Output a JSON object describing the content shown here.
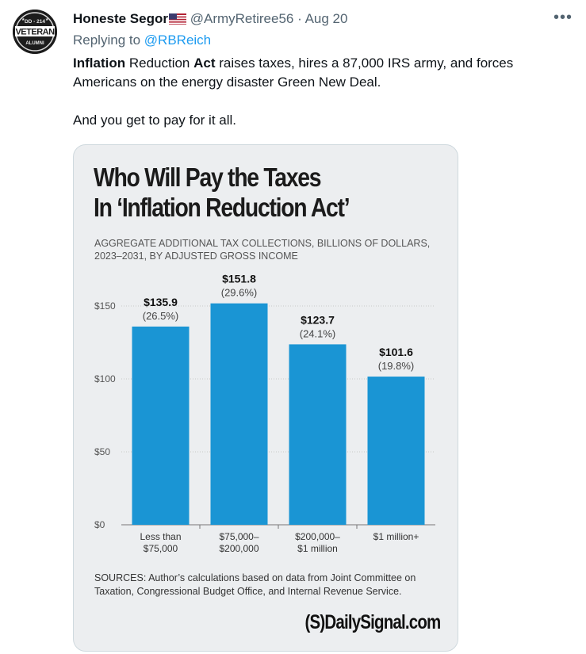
{
  "tweet": {
    "author_name": "Honeste Segor",
    "author_handle": "@ArmyRetiree56",
    "separator": "·",
    "date": "Aug 20",
    "more_label": "•••",
    "replying_prefix": "Replying to",
    "replying_handle": "@RBReich",
    "line1_bold1": "Inflation",
    "line1_mid1": " Reduction ",
    "line1_bold2": "Act",
    "line1_rest": " raises taxes, hires a 87,000 IRS army, and forces Americans on the energy disaster Green New Deal.",
    "line2": "And you get to pay for it all.",
    "avatar_top_text": "DD - 214",
    "avatar_main_text": "VETERAN",
    "avatar_bottom_text": "ALUMNI"
  },
  "chart_card": {
    "title": "Who Will Pay the Taxes\nIn ‘Inflation Reduction Act’",
    "subtitle": "AGGREGATE ADDITIONAL TAX COLLECTIONS, BILLIONS OF DOLLARS, 2023–2031, BY ADJUSTED GROSS INCOME",
    "sources": "SOURCES: Author’s calculations based on data from Joint Committee on Taxation, Congressional Budget Office, and Internal Revenue Service.",
    "logo": "(S)DailySignal.com"
  },
  "chart_data": {
    "type": "bar",
    "title": "Who Will Pay the Taxes In ‘Inflation Reduction Act’",
    "ylabel": "",
    "xlabel": "",
    "ylim": [
      0,
      160
    ],
    "yticks": [
      0,
      50,
      100,
      150
    ],
    "ytick_labels": [
      "$0",
      "$50",
      "$100",
      "$150"
    ],
    "categories": [
      [
        "Less than",
        "$75,000"
      ],
      [
        "$75,000–",
        "$200,000"
      ],
      [
        "$200,000–",
        "$1 million"
      ],
      [
        "$1 million+"
      ]
    ],
    "values": [
      135.9,
      151.8,
      123.7,
      101.6
    ],
    "value_labels": [
      "$135.9",
      "$151.8",
      "$123.7",
      "$101.6"
    ],
    "share_labels": [
      "(26.5%)",
      "(29.6%)",
      "(24.1%)",
      "(19.8%)"
    ],
    "bar_color": "#1a95d4",
    "grid": true
  },
  "colors": {
    "link": "#1d9bf0",
    "muted": "#536471",
    "card_bg": "#eceef0"
  }
}
